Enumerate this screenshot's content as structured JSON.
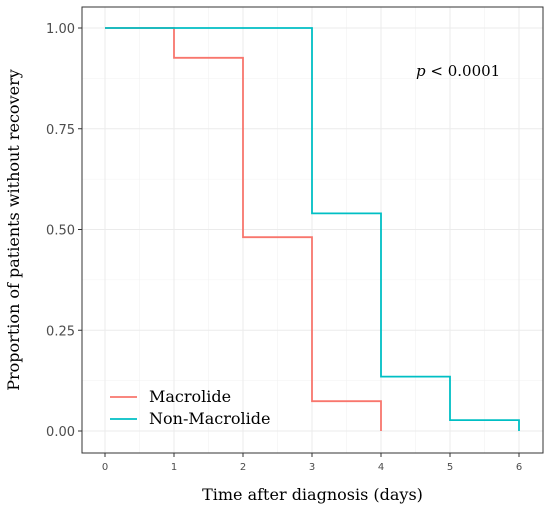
{
  "chart_data": {
    "type": "line",
    "subtype": "step",
    "title": "",
    "xlabel": "Time after diagnosis (days)",
    "ylabel": "Proportion of patients without recovery",
    "xlim": [
      0,
      6
    ],
    "ylim": [
      0,
      1
    ],
    "x_ticks": [
      "0",
      "1",
      "2",
      "3",
      "4",
      "5",
      "6"
    ],
    "y_ticks": [
      "0.00",
      "0.25",
      "0.50",
      "0.75",
      "1.00"
    ],
    "grid": true,
    "legend_position": "bottom-left",
    "annotation": {
      "italic": "p",
      "rest": " < 0.0001"
    },
    "series": [
      {
        "name": "Macrolide",
        "color": "#F8766D",
        "points": [
          [
            0,
            1.0
          ],
          [
            1,
            1.0
          ],
          [
            1,
            0.926
          ],
          [
            2,
            0.926
          ],
          [
            2,
            0.481
          ],
          [
            3,
            0.481
          ],
          [
            3,
            0.074
          ],
          [
            4,
            0.074
          ],
          [
            4,
            0.0
          ]
        ]
      },
      {
        "name": "Non-Macrolide",
        "color": "#00BFC4",
        "points": [
          [
            0,
            1.0
          ],
          [
            3,
            1.0
          ],
          [
            3,
            0.54
          ],
          [
            4,
            0.54
          ],
          [
            4,
            0.135
          ],
          [
            5,
            0.135
          ],
          [
            5,
            0.027
          ],
          [
            6,
            0.027
          ],
          [
            6,
            0.0
          ]
        ]
      }
    ]
  }
}
